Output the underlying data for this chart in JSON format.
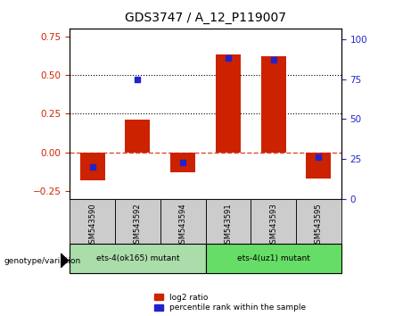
{
  "title": "GDS3747 / A_12_P119007",
  "categories": [
    "GSM543590",
    "GSM543592",
    "GSM543594",
    "GSM543591",
    "GSM543593",
    "GSM543595"
  ],
  "log2_ratio": [
    -0.18,
    0.21,
    -0.13,
    0.63,
    0.62,
    -0.17
  ],
  "percentile_rank": [
    20,
    75,
    23,
    88,
    87,
    26
  ],
  "group1_label": "ets-4(ok165) mutant",
  "group2_label": "ets-4(uz1) mutant",
  "group1_indices": [
    0,
    1,
    2
  ],
  "group2_indices": [
    3,
    4,
    5
  ],
  "bar_color_red": "#cc2200",
  "bar_color_blue": "#2222cc",
  "ylim_left": [
    -0.3,
    0.8
  ],
  "ylim_right": [
    0,
    106.67
  ],
  "yticks_left": [
    -0.25,
    0,
    0.25,
    0.5,
    0.75
  ],
  "yticks_right": [
    0,
    25,
    50,
    75,
    100
  ],
  "dotted_lines": [
    0.25,
    0.5
  ],
  "bg_color": "#ffffff",
  "group1_color": "#aaddaa",
  "group2_color": "#66dd66",
  "tick_area_color": "#cccccc",
  "legend_label_red": "log2 ratio",
  "legend_label_blue": "percentile rank within the sample",
  "bar_width": 0.55,
  "genotype_label": "genotype/variation"
}
